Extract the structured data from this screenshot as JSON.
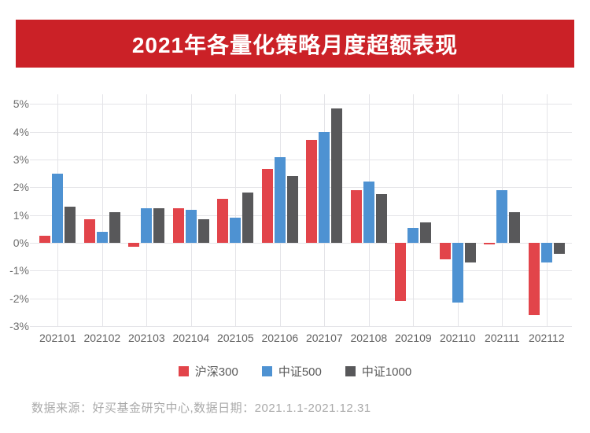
{
  "title": "2021年各量化策略月度超额表现",
  "footer": "数据来源：好买基金研究中心,数据日期：2021.1.1-2021.12.31",
  "colors": {
    "banner_bg": "#cb2127",
    "banner_text": "#ffffff",
    "grid_line": "#e4e4e8",
    "y_axis_label": "#6f6f6f",
    "x_axis_label": "#636363",
    "legend_text": "#595959",
    "footer_text": "#a9a9a9",
    "hs300_red": "#e2444a",
    "zz500_blue": "#4e92d2",
    "zz1000_gray": "#58585a"
  },
  "chart_data": {
    "type": "bar",
    "title": "2021年各量化策略月度超额表现",
    "categories": [
      "202101",
      "202102",
      "202103",
      "202104",
      "202105",
      "202106",
      "202107",
      "202108",
      "202109",
      "202110",
      "202111",
      "202112"
    ],
    "series": [
      {
        "name": "沪深300",
        "color": "#e2444a",
        "values": [
          0.25,
          0.85,
          -0.15,
          1.25,
          1.6,
          2.65,
          3.7,
          1.9,
          -2.1,
          -0.6,
          -0.05,
          -2.6
        ]
      },
      {
        "name": "中证500",
        "color": "#4e92d2",
        "values": [
          2.5,
          0.4,
          1.25,
          1.2,
          0.9,
          3.1,
          4.0,
          2.2,
          0.55,
          -2.15,
          1.9,
          -0.7
        ]
      },
      {
        "name": "中证1000",
        "color": "#58585a",
        "values": [
          1.3,
          1.1,
          1.25,
          0.85,
          1.8,
          2.4,
          4.85,
          1.75,
          0.75,
          -0.7,
          1.1,
          -0.4
        ]
      }
    ],
    "xlabel": "",
    "ylabel": "",
    "y_ticks": [
      "5%",
      "4%",
      "3%",
      "2%",
      "1%",
      "0%",
      "-1%",
      "-2%",
      "-3%"
    ],
    "y_tick_values": [
      5,
      4,
      3,
      2,
      1,
      0,
      -1,
      -2,
      -3
    ],
    "ylim": [
      -3,
      5
    ],
    "grid": true,
    "legend_position": "bottom"
  }
}
